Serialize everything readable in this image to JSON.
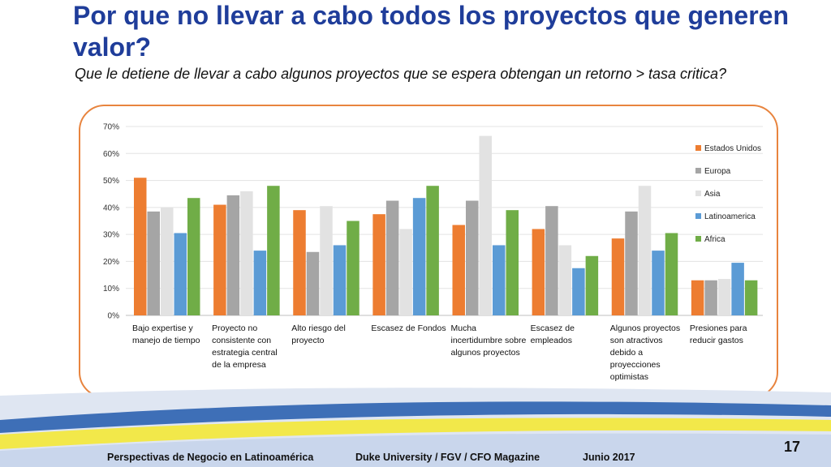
{
  "slide": {
    "title": "Por que no llevar a cabo todos los proyectos que generen valor?",
    "subtitle": "Que le detiene de llevar a cabo algunos proyectos que se espera obtengan un retorno > tasa critica?",
    "footer_left": "Perspectivas de Negocio en Latinoamérica",
    "footer_center": "Duke University / FGV / CFO Magazine",
    "footer_right": "Junio 2017",
    "page_number": "17"
  },
  "colors": {
    "title": "#1f3d9a",
    "frame": "#e8843e",
    "band_blue": "#3e6fb7",
    "band_yellow": "#f2e84a",
    "band_light": "#dfe6f2"
  },
  "chart_data": {
    "type": "bar",
    "title": "",
    "xlabel": "",
    "ylabel": "",
    "ylim": [
      0,
      70
    ],
    "yticks": [
      "0%",
      "10%",
      "20%",
      "30%",
      "40%",
      "50%",
      "60%",
      "70%"
    ],
    "ytick_values": [
      0,
      10,
      20,
      30,
      40,
      50,
      60,
      70
    ],
    "grid": true,
    "legend_position": "right",
    "categories": [
      [
        "Bajo expertise y",
        "manejo de tiempo"
      ],
      [
        "Proyecto no",
        "consistente con",
        "estrategia central",
        "de la empresa"
      ],
      [
        "Alto riesgo del",
        "proyecto"
      ],
      [
        "Escasez de Fondos"
      ],
      [
        "Mucha",
        "incertidumbre sobre",
        "algunos proyectos"
      ],
      [
        "Escasez de",
        "empleados"
      ],
      [
        "Algunos proyectos",
        "son atractivos",
        "debido a",
        "proyecciones",
        "optimistas"
      ],
      [
        "Presiones para",
        "reducir gastos"
      ]
    ],
    "series": [
      {
        "name": "Estados Unidos",
        "color": "#ed7d31",
        "values": [
          51,
          41,
          39,
          37.5,
          33.5,
          32,
          28.5,
          13
        ]
      },
      {
        "name": "Europa",
        "color": "#a5a5a5",
        "values": [
          38.5,
          44.5,
          23.5,
          42.5,
          42.5,
          40.5,
          38.5,
          13
        ]
      },
      {
        "name": "Asia",
        "color": "#e2e2e2",
        "values": [
          40,
          46,
          40.5,
          32,
          66.5,
          26,
          48,
          13.5
        ]
      },
      {
        "name": "Latinoamerica",
        "color": "#5b9bd5",
        "values": [
          30.5,
          24,
          26,
          43.5,
          26,
          17.5,
          24,
          19.5
        ]
      },
      {
        "name": "Africa",
        "color": "#70ad47",
        "values": [
          43.5,
          48,
          35,
          48,
          39,
          22,
          30.5,
          13
        ]
      }
    ]
  }
}
